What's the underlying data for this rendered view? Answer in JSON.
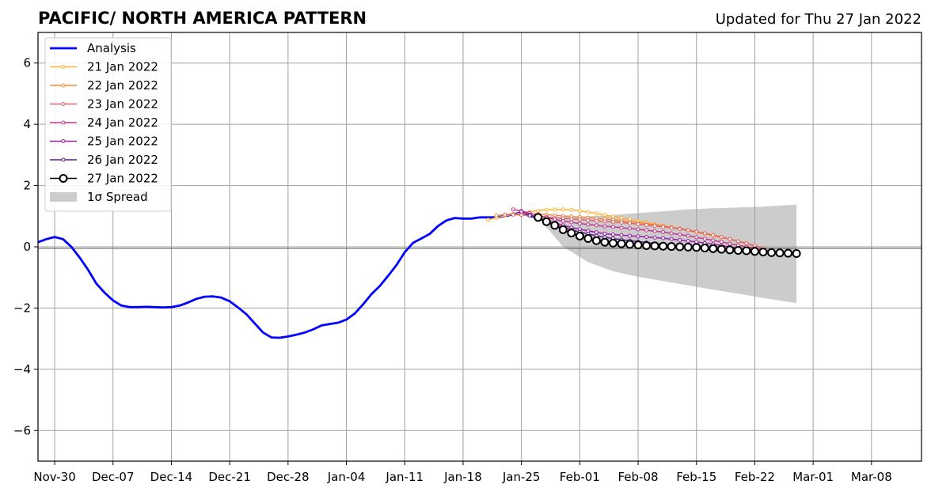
{
  "chart_data": {
    "type": "line",
    "title": "PACIFIC/ NORTH AMERICA PATTERN",
    "subtitle": "Updated for Thu 27 Jan 2022",
    "x_unit": "date",
    "xlim": [
      "2021-11-28",
      "2022-03-14"
    ],
    "ylim": [
      -7,
      7
    ],
    "yticks": [
      -6,
      -4,
      -2,
      0,
      2,
      4,
      6
    ],
    "ytick_labels": [
      "−6",
      "−4",
      "−2",
      "0",
      "2",
      "4",
      "6"
    ],
    "xticks": [
      "2021-11-30",
      "2021-12-07",
      "2021-12-14",
      "2021-12-21",
      "2021-12-28",
      "2022-01-04",
      "2022-01-11",
      "2022-01-18",
      "2022-01-25",
      "2022-02-01",
      "2022-02-08",
      "2022-02-15",
      "2022-02-22",
      "2022-03-01",
      "2022-03-08"
    ],
    "xtick_labels": [
      "Nov-30",
      "Dec-07",
      "Dec-14",
      "Dec-21",
      "Dec-28",
      "Jan-04",
      "Jan-11",
      "Jan-18",
      "Jan-25",
      "Feb-01",
      "Feb-08",
      "Feb-15",
      "Feb-22",
      "Mar-01",
      "Mar-08"
    ],
    "grid": true,
    "legend_position": "top-left",
    "zero_line": true,
    "colors": {
      "analysis": "#0000ff",
      "spread": "#cccccc",
      "grid": "#a0a0a0"
    },
    "series": [
      {
        "name": "Analysis",
        "kind": "analysis",
        "color": "#0000ff",
        "x": [
          "2021-11-28",
          "2021-11-29",
          "2021-11-30",
          "2021-12-01",
          "2021-12-02",
          "2021-12-03",
          "2021-12-04",
          "2021-12-05",
          "2021-12-06",
          "2021-12-07",
          "2021-12-08",
          "2021-12-09",
          "2021-12-10",
          "2021-12-11",
          "2021-12-12",
          "2021-12-13",
          "2021-12-14",
          "2021-12-15",
          "2021-12-16",
          "2021-12-17",
          "2021-12-18",
          "2021-12-19",
          "2021-12-20",
          "2021-12-21",
          "2021-12-22",
          "2021-12-23",
          "2021-12-24",
          "2021-12-25",
          "2021-12-26",
          "2021-12-27",
          "2021-12-28",
          "2021-12-29",
          "2021-12-30",
          "2021-12-31",
          "2022-01-01",
          "2022-01-02",
          "2022-01-03",
          "2022-01-04",
          "2022-01-05",
          "2022-01-06",
          "2022-01-07",
          "2022-01-08",
          "2022-01-09",
          "2022-01-10",
          "2022-01-11",
          "2022-01-12",
          "2022-01-13",
          "2022-01-14",
          "2022-01-15",
          "2022-01-16",
          "2022-01-17",
          "2022-01-18",
          "2022-01-19",
          "2022-01-20",
          "2022-01-21",
          "2022-01-22",
          "2022-01-23",
          "2022-01-24",
          "2022-01-25",
          "2022-01-26",
          "2022-01-27"
        ],
        "values": [
          0.15,
          0.25,
          0.32,
          0.25,
          0.0,
          -0.35,
          -0.75,
          -1.2,
          -1.5,
          -1.75,
          -1.92,
          -1.97,
          -1.97,
          -1.96,
          -1.97,
          -1.98,
          -1.97,
          -1.92,
          -1.82,
          -1.7,
          -1.63,
          -1.62,
          -1.66,
          -1.78,
          -1.98,
          -2.2,
          -2.5,
          -2.8,
          -2.96,
          -2.97,
          -2.93,
          -2.87,
          -2.8,
          -2.7,
          -2.57,
          -2.52,
          -2.48,
          -2.38,
          -2.18,
          -1.88,
          -1.55,
          -1.28,
          -0.95,
          -0.6,
          -0.18,
          0.13,
          0.27,
          0.42,
          0.68,
          0.86,
          0.94,
          0.92,
          0.92,
          0.96,
          0.96,
          0.96,
          1.0,
          1.06,
          1.12,
          1.0,
          0.96
        ]
      },
      {
        "name": "21 Jan 2022",
        "kind": "forecast",
        "color": "#ffb330",
        "x": [
          "2022-01-21",
          "2022-01-22",
          "2022-01-23",
          "2022-01-24",
          "2022-01-25",
          "2022-01-26",
          "2022-01-27",
          "2022-01-28",
          "2022-01-29",
          "2022-01-30",
          "2022-01-31",
          "2022-02-01",
          "2022-02-02",
          "2022-02-03",
          "2022-02-04",
          "2022-02-05",
          "2022-02-06",
          "2022-02-07",
          "2022-02-08",
          "2022-02-09",
          "2022-02-10",
          "2022-02-11",
          "2022-02-12",
          "2022-02-13",
          "2022-02-14",
          "2022-02-15",
          "2022-02-16",
          "2022-02-17",
          "2022-02-18",
          "2022-02-19",
          "2022-02-20",
          "2022-02-21"
        ],
        "values": [
          0.88,
          0.95,
          1.01,
          1.06,
          1.1,
          1.14,
          1.18,
          1.21,
          1.22,
          1.22,
          1.2,
          1.17,
          1.13,
          1.09,
          1.04,
          0.99,
          0.94,
          0.89,
          0.84,
          0.79,
          0.74,
          0.69,
          0.64,
          0.59,
          0.53,
          0.47,
          0.42,
          0.36,
          0.3,
          0.24,
          0.18,
          0.12
        ]
      },
      {
        "name": "22 Jan 2022",
        "kind": "forecast",
        "color": "#f08a3c",
        "x": [
          "2022-01-22",
          "2022-01-23",
          "2022-01-24",
          "2022-01-25",
          "2022-01-26",
          "2022-01-27",
          "2022-01-28",
          "2022-01-29",
          "2022-01-30",
          "2022-01-31",
          "2022-02-01",
          "2022-02-02",
          "2022-02-03",
          "2022-02-04",
          "2022-02-05",
          "2022-02-06",
          "2022-02-07",
          "2022-02-08",
          "2022-02-09",
          "2022-02-10",
          "2022-02-11",
          "2022-02-12",
          "2022-02-13",
          "2022-02-14",
          "2022-02-15",
          "2022-02-16",
          "2022-02-17",
          "2022-02-18",
          "2022-02-19",
          "2022-02-20",
          "2022-02-21",
          "2022-02-22"
        ],
        "values": [
          1.02,
          1.05,
          1.07,
          1.08,
          1.08,
          1.07,
          1.05,
          1.03,
          1.01,
          0.99,
          0.97,
          0.95,
          0.93,
          0.91,
          0.88,
          0.85,
          0.82,
          0.79,
          0.76,
          0.72,
          0.68,
          0.64,
          0.6,
          0.55,
          0.5,
          0.44,
          0.38,
          0.32,
          0.25,
          0.18,
          0.1,
          0.02
        ]
      },
      {
        "name": "23 Jan 2022",
        "kind": "forecast",
        "color": "#e0616c",
        "x": [
          "2022-01-23",
          "2022-01-24",
          "2022-01-25",
          "2022-01-26",
          "2022-01-27",
          "2022-01-28",
          "2022-01-29",
          "2022-01-30",
          "2022-01-31",
          "2022-02-01",
          "2022-02-02",
          "2022-02-03",
          "2022-02-04",
          "2022-02-05",
          "2022-02-06",
          "2022-02-07",
          "2022-02-08",
          "2022-02-09",
          "2022-02-10",
          "2022-02-11",
          "2022-02-12",
          "2022-02-13",
          "2022-02-14",
          "2022-02-15",
          "2022-02-16",
          "2022-02-17",
          "2022-02-18",
          "2022-02-19",
          "2022-02-20",
          "2022-02-21",
          "2022-02-22",
          "2022-02-23"
        ],
        "values": [
          1.05,
          1.05,
          1.04,
          1.02,
          1.0,
          0.98,
          0.95,
          0.93,
          0.91,
          0.89,
          0.87,
          0.85,
          0.83,
          0.81,
          0.79,
          0.77,
          0.74,
          0.71,
          0.68,
          0.65,
          0.62,
          0.58,
          0.54,
          0.49,
          0.44,
          0.38,
          0.32,
          0.25,
          0.18,
          0.11,
          0.04,
          -0.04
        ]
      },
      {
        "name": "24 Jan 2022",
        "kind": "forecast",
        "color": "#c4358e",
        "x": [
          "2022-01-24",
          "2022-01-25",
          "2022-01-26",
          "2022-01-27",
          "2022-01-28",
          "2022-01-29",
          "2022-01-30",
          "2022-01-31",
          "2022-02-01",
          "2022-02-02",
          "2022-02-03",
          "2022-02-04",
          "2022-02-05",
          "2022-02-06",
          "2022-02-07",
          "2022-02-08",
          "2022-02-09",
          "2022-02-10",
          "2022-02-11",
          "2022-02-12",
          "2022-02-13",
          "2022-02-14",
          "2022-02-15",
          "2022-02-16",
          "2022-02-17",
          "2022-02-18",
          "2022-02-19",
          "2022-02-20",
          "2022-02-21",
          "2022-02-22",
          "2022-02-23",
          "2022-02-24"
        ],
        "values": [
          1.22,
          1.17,
          1.1,
          1.02,
          0.95,
          0.89,
          0.84,
          0.8,
          0.76,
          0.73,
          0.7,
          0.67,
          0.65,
          0.62,
          0.6,
          0.57,
          0.54,
          0.51,
          0.48,
          0.44,
          0.4,
          0.36,
          0.31,
          0.26,
          0.21,
          0.16,
          0.1,
          0.05,
          0.0,
          -0.05,
          -0.1,
          -0.15
        ]
      },
      {
        "name": "25 Jan 2022",
        "kind": "forecast",
        "color": "#9a1fa6",
        "x": [
          "2022-01-25",
          "2022-01-26",
          "2022-01-27",
          "2022-01-28",
          "2022-01-29",
          "2022-01-30",
          "2022-01-31",
          "2022-02-01",
          "2022-02-02",
          "2022-02-03",
          "2022-02-04",
          "2022-02-05",
          "2022-02-06",
          "2022-02-07",
          "2022-02-08",
          "2022-02-09",
          "2022-02-10",
          "2022-02-11",
          "2022-02-12",
          "2022-02-13",
          "2022-02-14",
          "2022-02-15",
          "2022-02-16",
          "2022-02-17",
          "2022-02-18",
          "2022-02-19",
          "2022-02-20",
          "2022-02-21",
          "2022-02-22",
          "2022-02-23",
          "2022-02-24",
          "2022-02-25"
        ],
        "values": [
          1.15,
          1.05,
          0.95,
          0.86,
          0.78,
          0.7,
          0.63,
          0.57,
          0.52,
          0.47,
          0.43,
          0.4,
          0.38,
          0.36,
          0.34,
          0.32,
          0.3,
          0.28,
          0.25,
          0.22,
          0.19,
          0.16,
          0.12,
          0.08,
          0.04,
          0.0,
          -0.04,
          -0.08,
          -0.12,
          -0.15,
          -0.18,
          -0.2
        ]
      },
      {
        "name": "26 Jan 2022",
        "kind": "forecast",
        "color": "#5a1a8c",
        "x": [
          "2022-01-26",
          "2022-01-27",
          "2022-01-28",
          "2022-01-29",
          "2022-01-30",
          "2022-01-31",
          "2022-02-01",
          "2022-02-02",
          "2022-02-03",
          "2022-02-04",
          "2022-02-05",
          "2022-02-06",
          "2022-02-07",
          "2022-02-08",
          "2022-02-09",
          "2022-02-10",
          "2022-02-11",
          "2022-02-12",
          "2022-02-13",
          "2022-02-14",
          "2022-02-15",
          "2022-02-16",
          "2022-02-17",
          "2022-02-18",
          "2022-02-19",
          "2022-02-20",
          "2022-02-21",
          "2022-02-22",
          "2022-02-23",
          "2022-02-24",
          "2022-02-25",
          "2022-02-26"
        ],
        "values": [
          1.02,
          0.92,
          0.82,
          0.72,
          0.63,
          0.55,
          0.48,
          0.42,
          0.36,
          0.31,
          0.27,
          0.23,
          0.2,
          0.17,
          0.14,
          0.11,
          0.08,
          0.05,
          0.02,
          -0.01,
          -0.04,
          -0.07,
          -0.1,
          -0.12,
          -0.14,
          -0.16,
          -0.18,
          -0.19,
          -0.2,
          -0.21,
          -0.22,
          -0.22
        ]
      },
      {
        "name": "27 Jan 2022",
        "kind": "current",
        "color": "#000000",
        "x": [
          "2022-01-27",
          "2022-01-28",
          "2022-01-29",
          "2022-01-30",
          "2022-01-31",
          "2022-02-01",
          "2022-02-02",
          "2022-02-03",
          "2022-02-04",
          "2022-02-05",
          "2022-02-06",
          "2022-02-07",
          "2022-02-08",
          "2022-02-09",
          "2022-02-10",
          "2022-02-11",
          "2022-02-12",
          "2022-02-13",
          "2022-02-14",
          "2022-02-15",
          "2022-02-16",
          "2022-02-17",
          "2022-02-18",
          "2022-02-19",
          "2022-02-20",
          "2022-02-21",
          "2022-02-22",
          "2022-02-23",
          "2022-02-24",
          "2022-02-25",
          "2022-02-26",
          "2022-02-27"
        ],
        "values": [
          0.96,
          0.82,
          0.7,
          0.56,
          0.45,
          0.35,
          0.27,
          0.2,
          0.15,
          0.12,
          0.1,
          0.08,
          0.06,
          0.04,
          0.03,
          0.02,
          0.01,
          0.0,
          -0.01,
          -0.02,
          -0.04,
          -0.06,
          -0.08,
          -0.1,
          -0.12,
          -0.13,
          -0.15,
          -0.17,
          -0.19,
          -0.2,
          -0.21,
          -0.22
        ]
      }
    ],
    "spread": {
      "name": "1σ Spread",
      "color": "#cccccc",
      "x": [
        "2022-01-27",
        "2022-01-30",
        "2022-02-02",
        "2022-02-05",
        "2022-02-08",
        "2022-02-11",
        "2022-02-14",
        "2022-02-17",
        "2022-02-20",
        "2022-02-23",
        "2022-02-27"
      ],
      "upper": [
        0.96,
        0.98,
        1.0,
        1.04,
        1.1,
        1.16,
        1.22,
        1.26,
        1.28,
        1.31,
        1.38
      ],
      "lower": [
        0.96,
        0.0,
        -0.5,
        -0.8,
        -0.98,
        -1.12,
        -1.26,
        -1.4,
        -1.53,
        -1.67,
        -1.84
      ]
    }
  }
}
